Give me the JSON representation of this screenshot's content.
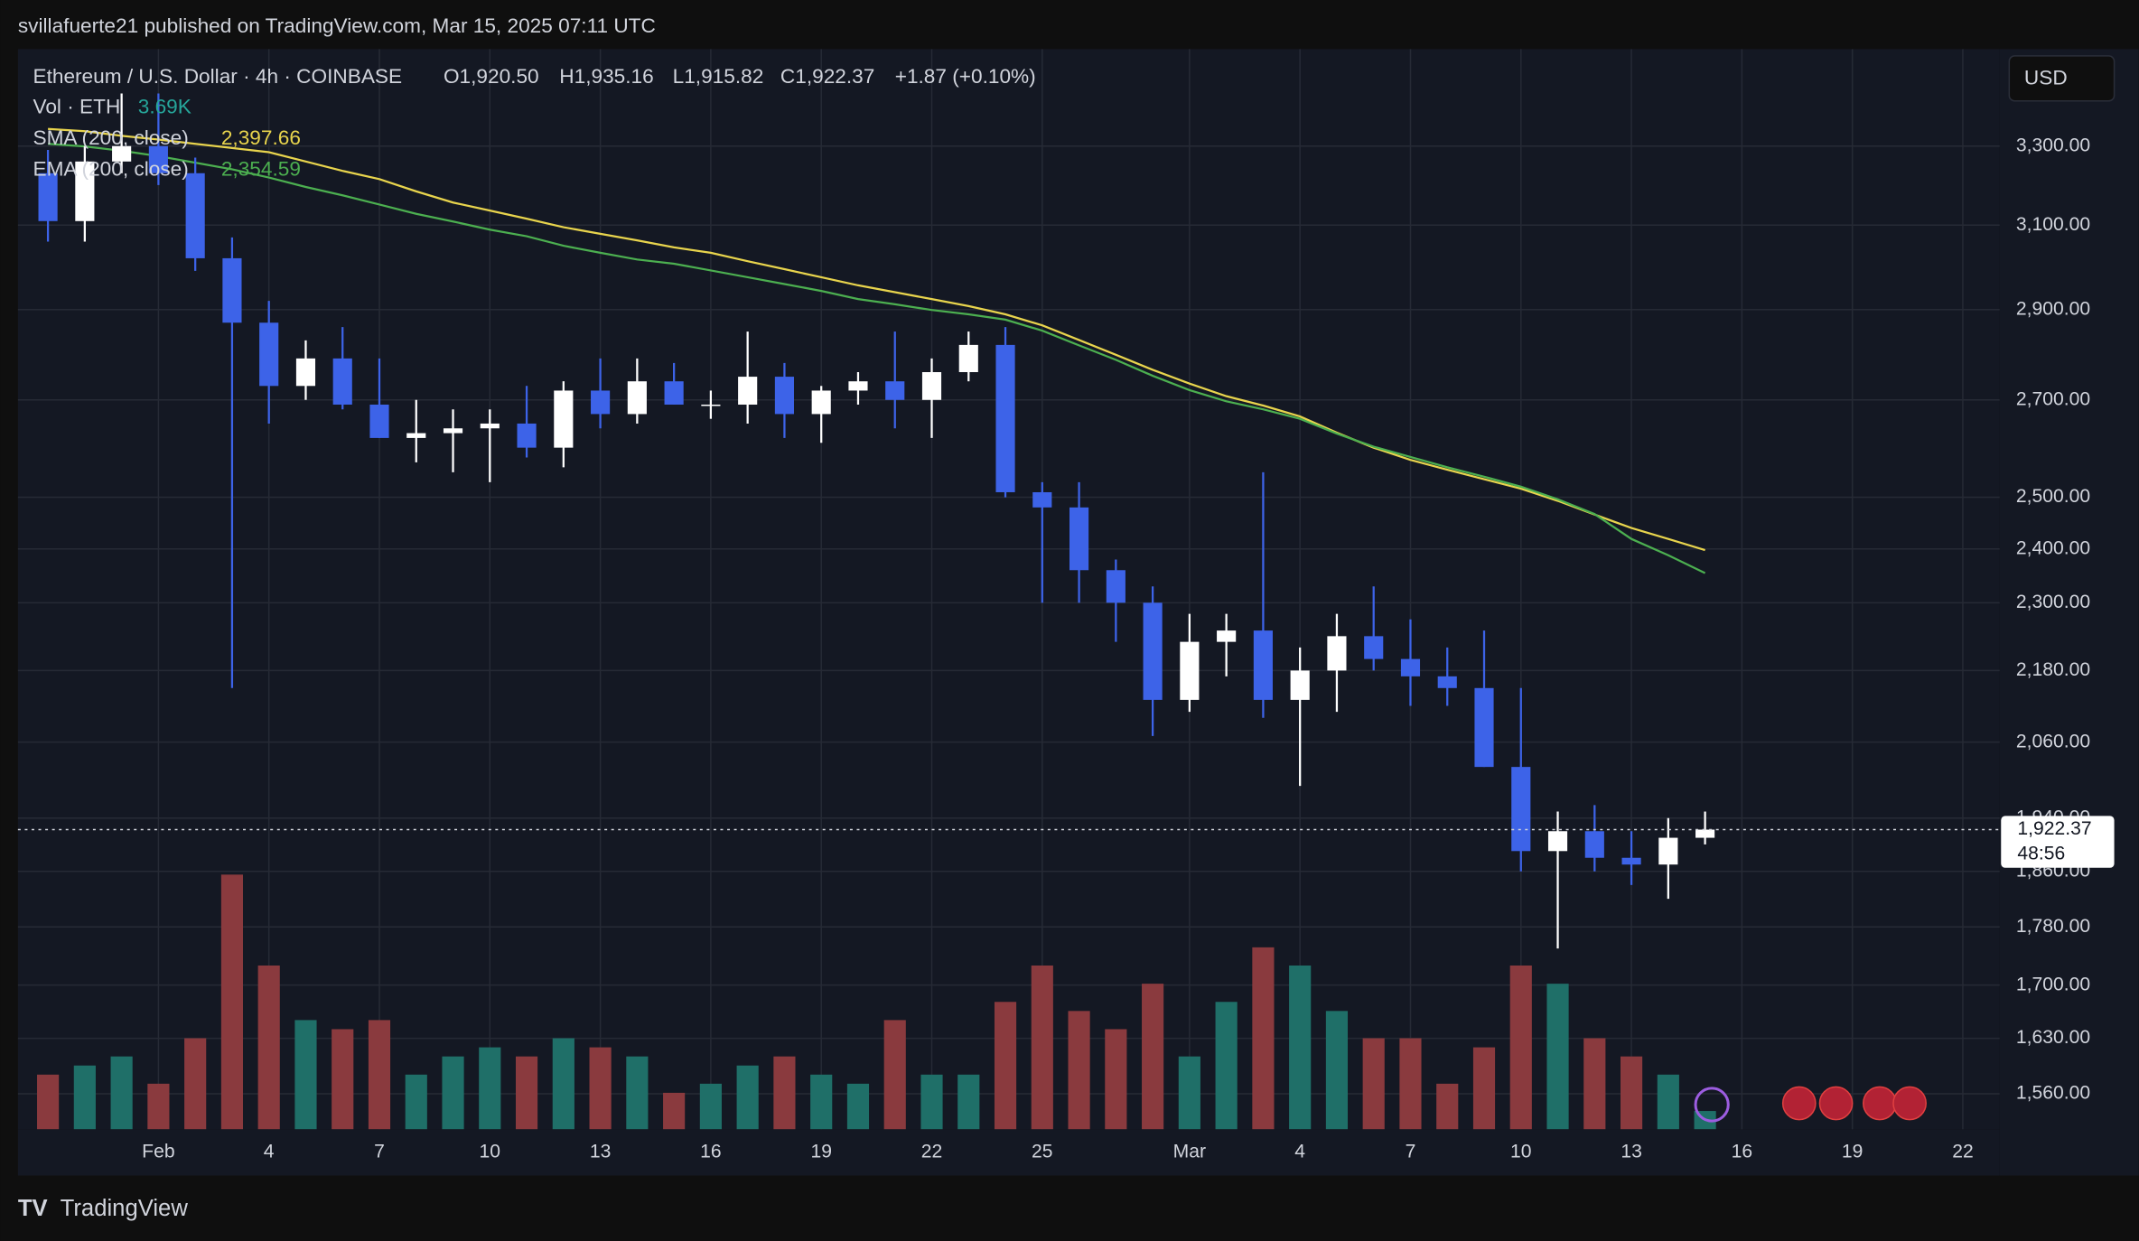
{
  "header": {
    "publisher": "svillafuerte21 published on TradingView.com, Mar 15, 2025 07:11 UTC",
    "brand": "TradingView",
    "currency_button": "USD"
  },
  "chart_data": {
    "type": "candlestick",
    "symbol": "Ethereum / U.S. Dollar · 4h · COINBASE",
    "ohlc": [
      "O1,920.50",
      "H1,935.16",
      "L1,915.82",
      "C1,922.37",
      "+1.87 (+0.10%)"
    ],
    "y_scale": "log",
    "grid": true,
    "up_color": "#ffffff",
    "down_color": "#3d63e8",
    "categories": [
      null,
      null,
      null,
      "Feb",
      null,
      null,
      "4",
      null,
      null,
      "7",
      null,
      null,
      "10",
      null,
      null,
      "13",
      null,
      null,
      "16",
      null,
      null,
      "19",
      null,
      null,
      "22",
      null,
      null,
      "25",
      null,
      null,
      null,
      "Mar",
      null,
      null,
      "4",
      null,
      null,
      "7",
      null,
      null,
      "10",
      null,
      null,
      "13",
      null,
      null,
      "16",
      null,
      null,
      "19",
      null,
      null,
      "22"
    ],
    "open": [
      3230,
      3110,
      3260,
      3300,
      3230,
      3020,
      2870,
      2730,
      2790,
      2690,
      2620,
      2630,
      2640,
      2650,
      2600,
      2720,
      2670,
      2740,
      2690,
      2690,
      2750,
      2670,
      2720,
      2740,
      2700,
      2760,
      2820,
      2510,
      2480,
      2360,
      2300,
      2130,
      2230,
      2250,
      2130,
      2180,
      2240,
      2200,
      2170,
      2150,
      2020,
      1890,
      1920,
      1880,
      1870,
      1910,
      null,
      null,
      null,
      null,
      null,
      null,
      null
    ],
    "high": [
      3290,
      3300,
      3440,
      3440,
      3270,
      3070,
      2920,
      2830,
      2860,
      2790,
      2700,
      2680,
      2680,
      2730,
      2740,
      2790,
      2790,
      2780,
      2720,
      2850,
      2780,
      2730,
      2760,
      2850,
      2790,
      2850,
      2860,
      2530,
      2530,
      2380,
      2330,
      2280,
      2280,
      2550,
      2220,
      2280,
      2330,
      2270,
      2220,
      2250,
      2150,
      1950,
      1960,
      1920,
      1940,
      1950,
      null,
      null,
      null,
      null,
      null,
      null,
      null
    ],
    "low": [
      3060,
      3060,
      3230,
      3200,
      2990,
      2150,
      2650,
      2700,
      2680,
      2620,
      2570,
      2550,
      2530,
      2580,
      2560,
      2640,
      2650,
      2690,
      2660,
      2650,
      2620,
      2610,
      2690,
      2640,
      2620,
      2740,
      2500,
      2300,
      2300,
      2230,
      2070,
      2110,
      2170,
      2100,
      1990,
      2110,
      2180,
      2120,
      2120,
      2020,
      1860,
      1750,
      1860,
      1840,
      1820,
      1900,
      null,
      null,
      null,
      null,
      null,
      null,
      null
    ],
    "close": [
      3110,
      3260,
      3300,
      3230,
      3020,
      2870,
      2730,
      2790,
      2690,
      2620,
      2630,
      2640,
      2650,
      2600,
      2720,
      2670,
      2740,
      2690,
      2690,
      2750,
      2670,
      2720,
      2740,
      2700,
      2760,
      2820,
      2510,
      2480,
      2360,
      2300,
      2130,
      2230,
      2250,
      2130,
      2180,
      2240,
      2200,
      2170,
      2150,
      2020,
      1890,
      1920,
      1880,
      1870,
      1910,
      1922.37,
      null,
      null,
      null,
      null,
      null,
      null,
      null
    ],
    "volume": {
      "name": "Vol · ETH",
      "value_label": "3.69K",
      "up_color": "#1f6f68",
      "down_color": "#8a3a3e",
      "lim": [
        0,
        1500
      ],
      "values": [
        300,
        350,
        400,
        250,
        500,
        1400,
        900,
        600,
        550,
        600,
        300,
        400,
        450,
        400,
        500,
        450,
        400,
        200,
        250,
        350,
        400,
        300,
        250,
        600,
        300,
        300,
        700,
        900,
        650,
        550,
        800,
        400,
        700,
        1000,
        900,
        650,
        500,
        500,
        250,
        450,
        900,
        800,
        500,
        400,
        300,
        100,
        null,
        null,
        null,
        null,
        null,
        null,
        null
      ]
    },
    "overlays": [
      {
        "name": "SMA (200, close)",
        "color": "#e8d44d",
        "legend_value": {
          "value": 2397.66,
          "label": "2,397.66"
        },
        "values": [
          3345,
          3339,
          3327,
          3317,
          3306,
          3295,
          3284,
          3260,
          3236,
          3215,
          3184,
          3156,
          3136,
          3116,
          3095,
          3079,
          3063,
          3046,
          3033,
          3013,
          2994,
          2975,
          2956,
          2940,
          2924,
          2908,
          2889,
          2864,
          2831,
          2798,
          2765,
          2735,
          2708,
          2688,
          2665,
          2631,
          2600,
          2575,
          2555,
          2536,
          2517,
          2493,
          2466,
          2440,
          2419,
          2397.66,
          null,
          null,
          null,
          null,
          null,
          null,
          null
        ]
      },
      {
        "name": "EMA (200, close)",
        "color": "#4caf50",
        "legend_value": {
          "value": 2354.59,
          "label": "2,354.59"
        },
        "values": [
          3306,
          3299,
          3288,
          3274,
          3257,
          3240,
          3219,
          3195,
          3174,
          3151,
          3128,
          3109,
          3089,
          3073,
          3050,
          3033,
          3017,
          3007,
          2991,
          2975,
          2959,
          2943,
          2924,
          2912,
          2899,
          2889,
          2877,
          2852,
          2819,
          2787,
          2752,
          2721,
          2697,
          2680,
          2660,
          2629,
          2602,
          2581,
          2560,
          2541,
          2521,
          2496,
          2467,
          2419,
          2388,
          2354.59,
          null,
          null,
          null,
          null,
          null,
          null,
          null
        ]
      }
    ],
    "last_price": {
      "value": 1922.37,
      "label": "1,922.37"
    },
    "countdown": "48:56",
    "ylim": [
      1517,
      3563
    ],
    "yticks": [
      {
        "value": 1560,
        "label": "1,560.00"
      },
      {
        "value": 1630,
        "label": "1,630.00"
      },
      {
        "value": 1700,
        "label": "1,700.00"
      },
      {
        "value": 1780,
        "label": "1,780.00"
      },
      {
        "value": 1860,
        "label": "1,860.00"
      },
      {
        "value": 1940,
        "label": "1,940.00"
      },
      {
        "value": 2060,
        "label": "2,060.00"
      },
      {
        "value": 2180,
        "label": "2,180.00"
      },
      {
        "value": 2300,
        "label": "2,300.00"
      },
      {
        "value": 2400,
        "label": "2,400.00"
      },
      {
        "value": 2500,
        "label": "2,500.00"
      },
      {
        "value": 2700,
        "label": "2,700.00"
      },
      {
        "value": 2900,
        "label": "2,900.00"
      },
      {
        "value": 3100,
        "label": "3,100.00"
      },
      {
        "value": 3300,
        "label": "3,300.00"
      }
    ]
  }
}
